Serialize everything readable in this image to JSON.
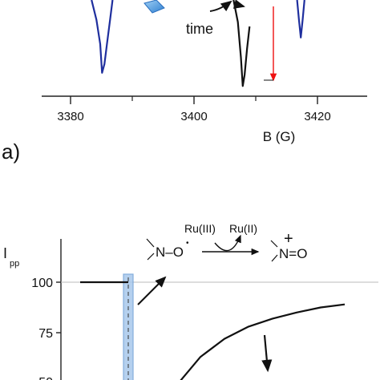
{
  "chart_data": [
    {
      "type": "line",
      "panel_label": "a)",
      "xlabel": "B (G)",
      "xticks": [
        3380,
        3400,
        3420
      ],
      "xlim": [
        3374,
        3424
      ],
      "grid": false,
      "annotations": [
        {
          "text": "time"
        }
      ],
      "series": [
        {
          "color": "#1f2f9e",
          "x": [
            3383.4,
            3384.2,
            3384.8,
            3385.1,
            3385.5,
            3385.9,
            3386.4,
            3386.8
          ],
          "y": [
            1.0,
            0.55,
            0.0,
            -0.65,
            -0.45,
            0.0,
            0.55,
            1.0
          ]
        },
        {
          "color": "#111111",
          "x": [
            3406.4,
            3407.1,
            3407.6,
            3407.9,
            3408.2,
            3408.6,
            3409.0
          ],
          "y": [
            1.0,
            0.5,
            -0.3,
            -0.95,
            -0.7,
            -0.1,
            0.4
          ]
        },
        {
          "color": "#1f2f9e",
          "x": [
            3416.7,
            3417.0,
            3417.3,
            3417.6,
            3417.9
          ],
          "y": [
            1.0,
            0.55,
            0.15,
            0.55,
            1.0
          ]
        }
      ]
    },
    {
      "type": "line",
      "ylabel_main": "I",
      "ylabel_sub": "pp",
      "yticks": [
        50,
        75,
        100
      ],
      "ylim": [
        45,
        125
      ],
      "reference_line": 100,
      "scheme": {
        "nitroxide": "N–O",
        "radical_dot": "•",
        "oxidant": "Ru(III)",
        "reduced": "Ru(II)",
        "product": "N=O",
        "charge": "+"
      },
      "series": [
        {
          "color": "#111111",
          "x": [
            0,
            1
          ],
          "y": [
            100,
            100
          ]
        },
        {
          "color": "#111111",
          "x": [
            1.9,
            2.5,
            3.0,
            3.5,
            4.0,
            4.5,
            5.0,
            5.5
          ],
          "y": [
            46,
            63,
            72,
            78,
            82,
            85,
            87.5,
            89
          ]
        }
      ]
    }
  ]
}
